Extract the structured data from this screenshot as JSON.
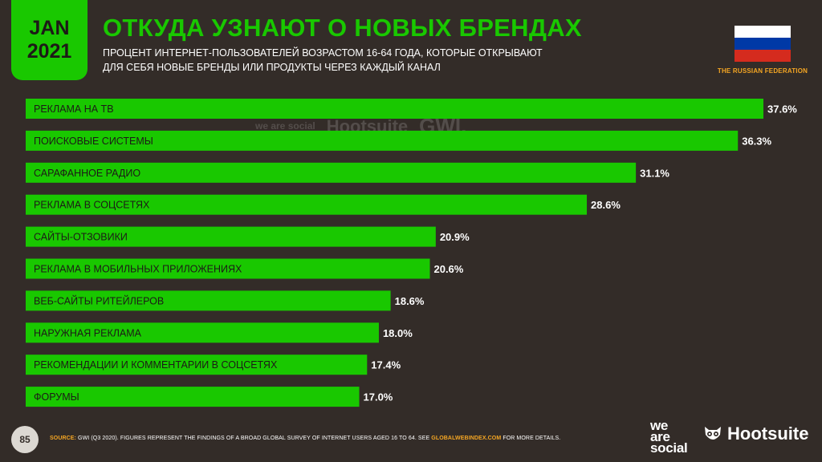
{
  "header": {
    "date_line1": "JAN",
    "date_line2": "2021",
    "title": "ОТКУДА УЗНАЮТ О НОВЫХ БРЕНДАХ",
    "subtitle_line1": "ПРОЦЕНТ ИНТЕРНЕТ-ПОЛЬЗОВАТЕЛЕЙ ВОЗРАСТОМ 16-64 ГОДА, КОТОРЫЕ ОТКРЫВАЮТ",
    "subtitle_line2": "ДЛЯ СЕБЯ НОВЫЕ БРЕНДЫ ИЛИ ПРОДУКТЫ ЧЕРЕЗ КАЖДЫЙ КАНАЛ",
    "country": "THE RUSSIAN FEDERATION",
    "flag_colors": [
      "#ffffff",
      "#0039a6",
      "#d52b1e"
    ]
  },
  "watermark": {
    "we_are_social": "we are social",
    "hootsuite": "Hootsuite",
    "gwi": "GWI."
  },
  "chart_data": {
    "type": "bar",
    "orientation": "horizontal",
    "categories": [
      "РЕКЛАМА НА ТВ",
      "ПОИСКОВЫЕ СИСТЕМЫ",
      "САРАФАННОЕ РАДИО",
      "РЕКЛАМА В СОЦСЕТЯХ",
      "САЙТЫ-ОТЗОВИКИ",
      "РЕКЛАМА В МОБИЛЬНЫХ ПРИЛОЖЕНИЯХ",
      "ВЕБ-САЙТЫ РИТЕЙЛЕРОВ",
      "НАРУЖНАЯ РЕКЛАМА",
      "РЕКОМЕНДАЦИИ И КОММЕНТАРИИ В СОЦСЕТЯХ",
      "ФОРУМЫ"
    ],
    "values": [
      37.6,
      36.3,
      31.1,
      28.6,
      20.9,
      20.6,
      18.6,
      18.0,
      17.4,
      17.0
    ],
    "value_labels": [
      "37.6%",
      "36.3%",
      "31.1%",
      "28.6%",
      "20.9%",
      "20.6%",
      "18.6%",
      "18.0%",
      "17.4%",
      "17.0%"
    ],
    "xlim": [
      0,
      37.6
    ],
    "bar_color": "#19c800",
    "grid": false
  },
  "footer": {
    "page_number": "85",
    "source_label": "SOURCE:",
    "source_text": "GWI (Q3 2020). FIGURES REPRESENT THE FINDINGS OF A BROAD GLOBAL SURVEY OF INTERNET USERS AGED 16 TO 64. SEE",
    "source_link": "GLOBALWEBINDEX.COM",
    "source_tail": "FOR MORE DETAILS.",
    "logo_ws_line1": "we",
    "logo_ws_line2": "are",
    "logo_ws_line3": "social",
    "logo_hootsuite": "Hootsuite"
  }
}
